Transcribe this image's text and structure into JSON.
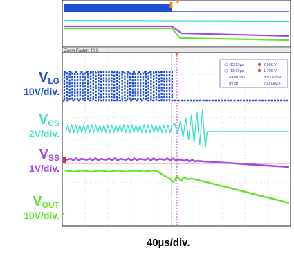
{
  "overlay": {
    "zoom_factor": "Zoom Factor: 40 X",
    "cursor_readout": [
      {
        "label": "-13.20µs",
        "value": "2.000 V"
      },
      {
        "label": "-13.60µs",
        "value": "1.700 V"
      },
      {
        "label": "Δ400.0ns",
        "value": "Δ300.0mV"
      },
      {
        "label": "dV/dt",
        "value": "750.0kV/s"
      }
    ]
  },
  "timebase": "40µs/div.",
  "chart_data": {
    "type": "line",
    "title": "",
    "xlabel": "40µs/div.",
    "ylabel": "",
    "grid": true,
    "x_divisions": 10,
    "event_time_div": 4.8,
    "series": [
      {
        "name": "VLG",
        "symbol": "V",
        "subscript": "LG",
        "scale": "10V/div.",
        "color": "#1f4fd6",
        "description": "gate drive square wave, switching stops after fault event"
      },
      {
        "name": "VCS",
        "symbol": "V",
        "subscript": "CS",
        "scale": "2V/div.",
        "color": "#3fe0c8",
        "description": "current sense triangle ramp, ringing at fault then flat"
      },
      {
        "name": "VSS",
        "symbol": "V",
        "subscript": "SS",
        "scale": "1V/div.",
        "color": "#a447e8",
        "description": "soft-start voltage, slowly discharging after fault"
      },
      {
        "name": "VOUT",
        "symbol": "V",
        "subscript": "OUT",
        "scale": "10V/div.",
        "color": "#5ee62a",
        "description": "output voltage, decays after fault"
      }
    ]
  },
  "colors": {
    "vlg": "#1f4fd6",
    "vcs": "#3fe0c8",
    "vss": "#a447e8",
    "vout": "#5ee62a",
    "marker": "#f08a1c"
  }
}
